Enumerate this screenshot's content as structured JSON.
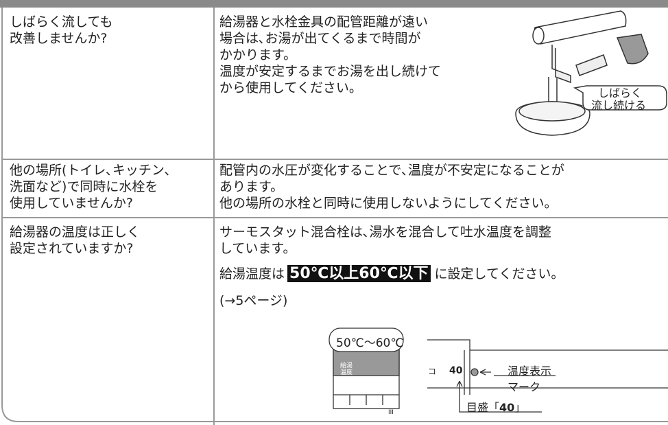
{
  "rows": [
    {
      "question": [
        "しばらく流しても",
        "改善しませんか?"
      ],
      "answer": [
        "給湯器と水栓金具の配管距離が遠い",
        "場合は､お湯が出てくるまで時間が",
        "かかります。",
        "温度が安定するまでお湯を出し続けて",
        "から使用してください。"
      ],
      "callout": [
        "しばらく",
        "流し続ける"
      ]
    },
    {
      "question": [
        "他の場所(トイレ､キッチン､",
        "洗面など)で同時に水栓を",
        "使用していませんか?"
      ],
      "answer": [
        "配管内の水圧が変化することで､温度が不安定になることが",
        "あります。",
        "他の場所の水栓と同時に使用しないようにしてください。"
      ]
    },
    {
      "question": [
        "給湯器の温度は正しく",
        "設定されていますか?"
      ],
      "answer": [
        "サーモスタット混合栓は､湯水を混合して吐水温度を調整",
        "しています。"
      ],
      "setting": {
        "before": "給湯温度は",
        "highlight": "50℃以上60℃以下",
        "after": "に設定してください。"
      },
      "reference": "(→5ページ)",
      "diagram": {
        "range": "50℃～60℃",
        "remote_label": [
          "給湯",
          "温度"
        ],
        "scale_mark": "40",
        "side_mark": "コ",
        "corner_mark": "III",
        "mark_label": [
          "温度表示",
          "マーク"
        ],
        "scale_label": {
          "before": "目盛「",
          "value": "40",
          "after": "」"
        }
      }
    }
  ]
}
